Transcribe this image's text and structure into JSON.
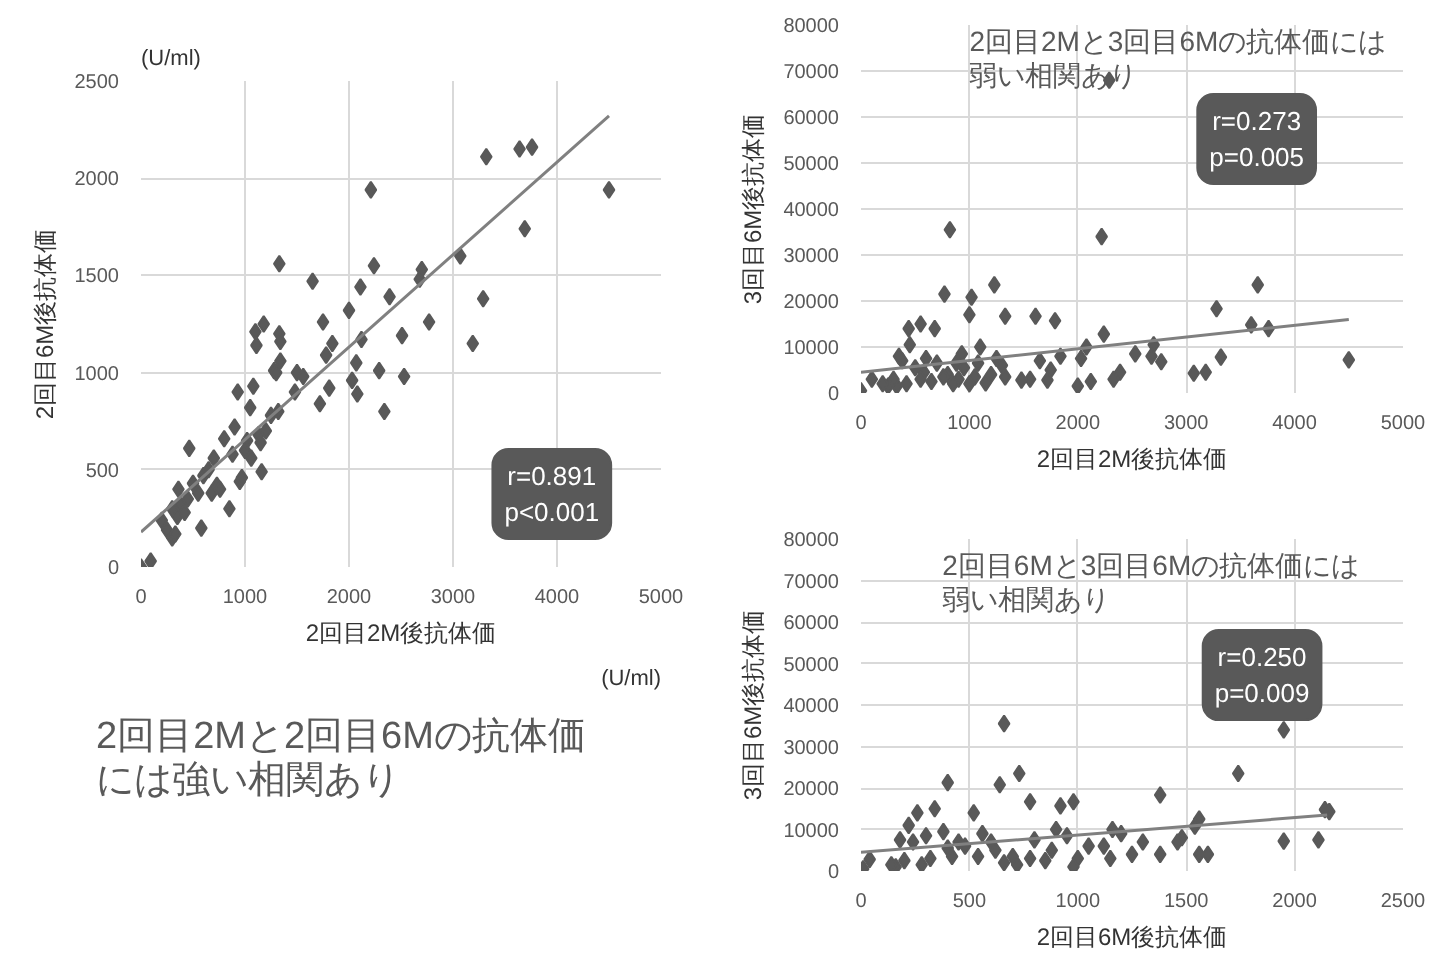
{
  "chart_data": [
    {
      "type": "scatter",
      "title": "2回目2Mと2回目6Mの抗体価には強い相関あり",
      "xlabel": "2回目2M後抗体価",
      "ylabel": "2回目6M後抗体価",
      "xlim": [
        0,
        5000
      ],
      "ylim": [
        0,
        2500
      ],
      "xticks": [
        0,
        1000,
        2000,
        3000,
        4000,
        5000
      ],
      "yticks": [
        0,
        500,
        1000,
        1500,
        2000,
        2500
      ],
      "grid": true,
      "marker": "diamond",
      "annotations": [
        "r=0.891\np<0.001",
        "(U/ml)",
        "(U/ml)"
      ],
      "series": [
        {
          "color": "#595959",
          "x": [
            0,
            93,
            464,
            200,
            250,
            300,
            330,
            350,
            380,
            420,
            300,
            360,
            450,
            500,
            550,
            580,
            600,
            650,
            680,
            700,
            730,
            760,
            800,
            850,
            880,
            900,
            930,
            950,
            970,
            1000,
            1020,
            1050,
            1060,
            1080,
            1100,
            1110,
            1130,
            1150,
            1160,
            1180,
            1200,
            1250,
            1280,
            1300,
            1320,
            1330,
            1340,
            1340,
            1330,
            1480,
            1500,
            1560,
            1650,
            1720,
            1750,
            1780,
            1810,
            1840,
            2000,
            2030,
            2070,
            2080,
            2110,
            2120,
            2210,
            2240,
            2290,
            2340,
            2390,
            2510,
            2530,
            2680,
            2700,
            2770,
            3070,
            3190,
            3290,
            3320,
            3640,
            3690,
            3760,
            4500
          ],
          "values": [
            0,
            30,
            610,
            240,
            190,
            150,
            170,
            260,
            320,
            280,
            300,
            400,
            350,
            430,
            380,
            200,
            470,
            500,
            380,
            560,
            420,
            400,
            660,
            300,
            580,
            720,
            900,
            440,
            460,
            600,
            650,
            820,
            560,
            930,
            1210,
            1140,
            680,
            640,
            490,
            1250,
            700,
            780,
            1010,
            1000,
            800,
            1200,
            1160,
            1060,
            1560,
            900,
            1000,
            980,
            1470,
            840,
            1260,
            1090,
            920,
            1150,
            1320,
            960,
            1050,
            890,
            1440,
            1170,
            1940,
            1550,
            1010,
            800,
            1390,
            1190,
            980,
            1480,
            1530,
            1260,
            1600,
            1150,
            1380,
            2110,
            2150,
            1740,
            2160,
            1940
          ]
        },
        {
          "type": "line",
          "marker": "none",
          "color": "#808080",
          "x": [
            0,
            4500
          ],
          "values": [
            180,
            2320
          ]
        }
      ]
    },
    {
      "type": "scatter",
      "title": "2回目2Mと3回目6Mの抗体価には弱い相関あり",
      "xlabel": "2回目2M後抗体価",
      "ylabel": "3回目6M後抗体価",
      "xlim": [
        0,
        5000
      ],
      "ylim": [
        0,
        80000
      ],
      "xticks": [
        0,
        1000,
        2000,
        3000,
        4000,
        5000
      ],
      "yticks": [
        0,
        10000,
        20000,
        30000,
        40000,
        50000,
        60000,
        70000,
        80000
      ],
      "grid": true,
      "marker": "diamond",
      "annotations": [
        "r=0.273\np=0.005"
      ],
      "series": [
        {
          "color": "#595959",
          "x": [
            2290,
            2220,
            820,
            770,
            1020,
            1230,
            1330,
            1610,
            1790,
            1000,
            550,
            680,
            440,
            3660,
            3280,
            3600,
            3760,
            4500,
            3320,
            3180,
            3070,
            2770,
            2700,
            2680,
            2530,
            2390,
            2330,
            2240,
            2120,
            2080,
            2030,
            2000,
            1840,
            1750,
            1720,
            1650,
            1560,
            1480,
            1330,
            1300,
            1250,
            1200,
            1150,
            1100,
            1080,
            1050,
            1000,
            950,
            930,
            900,
            880,
            850,
            800,
            760,
            700,
            650,
            600,
            580,
            550,
            500,
            450,
            420,
            380,
            350,
            330,
            300,
            250,
            200,
            100,
            0
          ],
          "values": [
            68000,
            34000,
            35500,
            21500,
            20800,
            23500,
            16700,
            16700,
            15700,
            17000,
            15000,
            14000,
            14000,
            23500,
            18300,
            14800,
            14000,
            7200,
            7800,
            4500,
            4300,
            6800,
            10500,
            8000,
            8500,
            4500,
            3000,
            12800,
            2500,
            10000,
            7500,
            1500,
            8000,
            5000,
            2800,
            7000,
            3000,
            2800,
            3500,
            6000,
            7500,
            4000,
            2200,
            10000,
            6500,
            3500,
            2000,
            5500,
            8500,
            3000,
            6500,
            2000,
            4000,
            3500,
            6500,
            2500,
            7500,
            4500,
            3000,
            5500,
            10500,
            2000,
            7000,
            8000,
            1500,
            3000,
            1500,
            2000,
            3000,
            500
          ]
        },
        {
          "type": "line",
          "marker": "none",
          "color": "#808080",
          "x": [
            0,
            4500
          ],
          "values": [
            4500,
            16000
          ]
        }
      ]
    },
    {
      "type": "scatter",
      "title": "2回目6Mと3回目6Mの抗体価には弱い相関あり",
      "xlabel": "2回目6M後抗体価",
      "ylabel": "3回目6M後抗体価",
      "xlim": [
        0,
        2500
      ],
      "ylim": [
        0,
        80000
      ],
      "xticks": [
        0,
        500,
        1000,
        1500,
        2000,
        2500
      ],
      "yticks": [
        0,
        10000,
        20000,
        30000,
        40000,
        50000,
        60000,
        70000,
        80000
      ],
      "grid": true,
      "marker": "diamond",
      "annotations": [
        "r=0.250\np=0.009"
      ],
      "series": [
        {
          "color": "#595959",
          "x": [
            1950,
            660,
            400,
            640,
            730,
            780,
            920,
            980,
            1380,
            1740,
            2160,
            2140,
            1950,
            2110,
            1560,
            1540,
            1600,
            1560,
            1480,
            1460,
            1380,
            1300,
            1250,
            1200,
            1160,
            1150,
            1120,
            1050,
            1000,
            980,
            950,
            900,
            880,
            850,
            800,
            780,
            720,
            700,
            660,
            620,
            600,
            560,
            540,
            520,
            480,
            450,
            420,
            400,
            380,
            340,
            320,
            300,
            280,
            260,
            240,
            220,
            200,
            180,
            160,
            140,
            40,
            10
          ],
          "values": [
            34000,
            35500,
            21300,
            20800,
            23500,
            16700,
            15700,
            16700,
            18300,
            23500,
            14300,
            14800,
            7200,
            7500,
            12500,
            10800,
            4000,
            4000,
            8000,
            7000,
            4000,
            7000,
            4000,
            9000,
            10000,
            3000,
            6000,
            6000,
            3000,
            1000,
            8500,
            10000,
            5000,
            2500,
            7500,
            3000,
            1500,
            3500,
            2000,
            5000,
            7000,
            9000,
            3500,
            14000,
            6000,
            7000,
            3500,
            5500,
            9500,
            15000,
            3000,
            8500,
            1500,
            14000,
            7000,
            11000,
            2500,
            7500,
            1000,
            1500,
            2800,
            500
          ]
        },
        {
          "type": "line",
          "marker": "none",
          "color": "#808080",
          "x": [
            0,
            2150
          ],
          "values": [
            4500,
            13500
          ]
        }
      ]
    }
  ]
}
